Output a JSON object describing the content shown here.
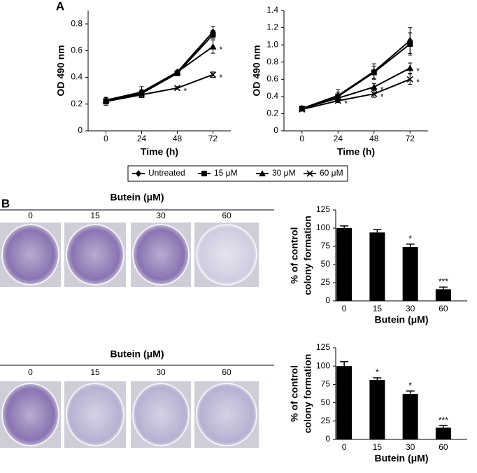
{
  "figure": {
    "panel_labels": [
      "A",
      "B"
    ],
    "plates": [
      {
        "title": "Butein (μM)",
        "doses": [
          "0",
          "15",
          "30",
          "60"
        ]
      },
      {
        "title": "Butein (μM)",
        "doses": [
          "0",
          "15",
          "30",
          "60"
        ]
      }
    ]
  },
  "chart_data": [
    {
      "type": "line",
      "xlabel": "Time (h)",
      "ylabel": "OD 490 nm",
      "x": [
        0,
        24,
        48,
        72
      ],
      "xlim": [
        -12,
        84
      ],
      "xticks": [
        0,
        24,
        48,
        72
      ],
      "ylim": [
        0,
        0.9
      ],
      "yticks": [
        0,
        0.2,
        0.4,
        0.6,
        0.8
      ],
      "series": [
        {
          "name": "Untreated",
          "color": "#000000",
          "marker": "diamond",
          "values": [
            0.23,
            0.28,
            0.44,
            0.74
          ],
          "errors": [
            0.02,
            0.02,
            0.01,
            0.04
          ],
          "significance": [
            null,
            null,
            null,
            null
          ]
        },
        {
          "name": "15 μM",
          "color": "#000000",
          "marker": "square",
          "values": [
            0.22,
            0.28,
            0.43,
            0.72
          ],
          "errors": [
            0.02,
            0.03,
            0.01,
            0.03
          ],
          "significance": [
            null,
            null,
            null,
            null
          ]
        },
        {
          "name": "30 μM",
          "color": "#000000",
          "marker": "triangle",
          "values": [
            0.23,
            0.29,
            0.44,
            0.63
          ],
          "errors": [
            0.02,
            0.04,
            0.01,
            0.05
          ],
          "significance": [
            null,
            null,
            null,
            "*"
          ]
        },
        {
          "name": "60 μM",
          "color": "#000000",
          "marker": "x",
          "values": [
            0.22,
            0.27,
            0.32,
            0.42
          ],
          "errors": [
            0.03,
            0.02,
            0.01,
            0.02
          ],
          "significance": [
            null,
            null,
            "*",
            "*"
          ]
        }
      ]
    },
    {
      "type": "line",
      "xlabel": "Time (h)",
      "ylabel": "OD 490 nm",
      "x": [
        0,
        24,
        48,
        72
      ],
      "xlim": [
        -12,
        84
      ],
      "xticks": [
        0,
        24,
        48,
        72
      ],
      "ylim": [
        0,
        1.4
      ],
      "yticks": [
        0,
        0.2,
        0.4,
        0.6,
        0.8,
        {
          "value": 1,
          "label": "1.0"
        },
        1.2,
        1.4
      ],
      "series": [
        {
          "name": "Untreated",
          "color": "#000000",
          "marker": "diamond",
          "values": [
            0.26,
            0.41,
            0.69,
            1.05
          ],
          "errors": [
            0.02,
            0.07,
            0.09,
            0.15
          ],
          "significance": [
            null,
            null,
            null,
            null
          ]
        },
        {
          "name": "15 μM",
          "color": "#000000",
          "marker": "square",
          "values": [
            0.26,
            0.4,
            0.68,
            1.01
          ],
          "errors": [
            0.02,
            0.05,
            0.07,
            0.13
          ],
          "significance": [
            null,
            null,
            null,
            null
          ]
        },
        {
          "name": "30 μM",
          "color": "#000000",
          "marker": "triangle",
          "values": [
            0.26,
            0.38,
            0.51,
            0.73
          ],
          "errors": [
            0.02,
            0.03,
            0.04,
            0.06
          ],
          "significance": [
            null,
            null,
            "*",
            "*"
          ]
        },
        {
          "name": "60 μM",
          "color": "#000000",
          "marker": "x",
          "values": [
            0.25,
            0.35,
            0.43,
            0.6
          ],
          "errors": [
            0.02,
            0.02,
            0.04,
            0.06
          ],
          "significance": [
            null,
            "*",
            "*",
            "*"
          ]
        }
      ]
    },
    {
      "type": "bar",
      "xlabel": "Butein (μM)",
      "ylabel": [
        "% of control",
        "colony formation"
      ],
      "categories": [
        "0",
        "15",
        "30",
        "60"
      ],
      "values": [
        100,
        94,
        74,
        16
      ],
      "errors": [
        3,
        4,
        4,
        3
      ],
      "significance": [
        null,
        null,
        "*",
        "***"
      ],
      "color": "#000000",
      "ylim": [
        0,
        125
      ],
      "yticks": [
        0,
        25,
        50,
        75,
        100,
        125
      ]
    },
    {
      "type": "bar",
      "xlabel": "Butein (μM)",
      "ylabel": [
        "% of control",
        "colony formation"
      ],
      "categories": [
        "0",
        "15",
        "30",
        "60"
      ],
      "values": [
        100,
        81,
        62,
        16
      ],
      "errors": [
        6,
        3,
        4,
        3
      ],
      "significance": [
        null,
        "*",
        "*",
        "***"
      ],
      "color": "#000000",
      "ylim": [
        0,
        125
      ],
      "yticks": [
        0,
        25,
        50,
        75,
        100,
        125
      ]
    }
  ]
}
